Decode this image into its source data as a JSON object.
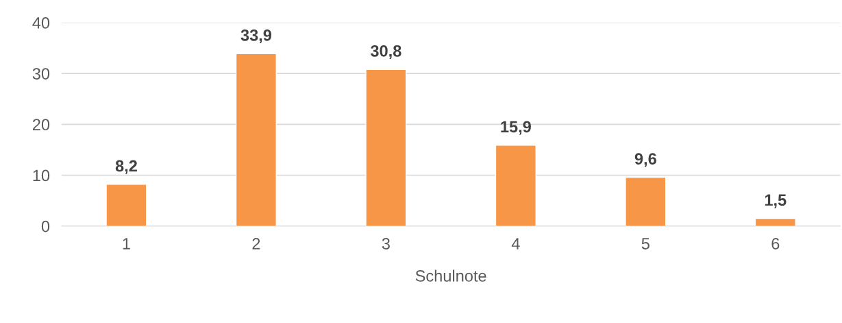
{
  "chart_data": {
    "type": "bar",
    "xlabel": "Schulnote",
    "categories": [
      "1",
      "2",
      "3",
      "4",
      "5",
      "6"
    ],
    "values": [
      8.2,
      33.9,
      30.8,
      15.9,
      9.6,
      1.5
    ],
    "value_labels": [
      "8,2",
      "33,9",
      "30,8",
      "15,9",
      "9,6",
      "1,5"
    ],
    "color": "#f79646",
    "ylim": [
      0,
      40
    ],
    "yticks": [
      0,
      10,
      20,
      30,
      40
    ],
    "grid": "y",
    "legend": false
  }
}
